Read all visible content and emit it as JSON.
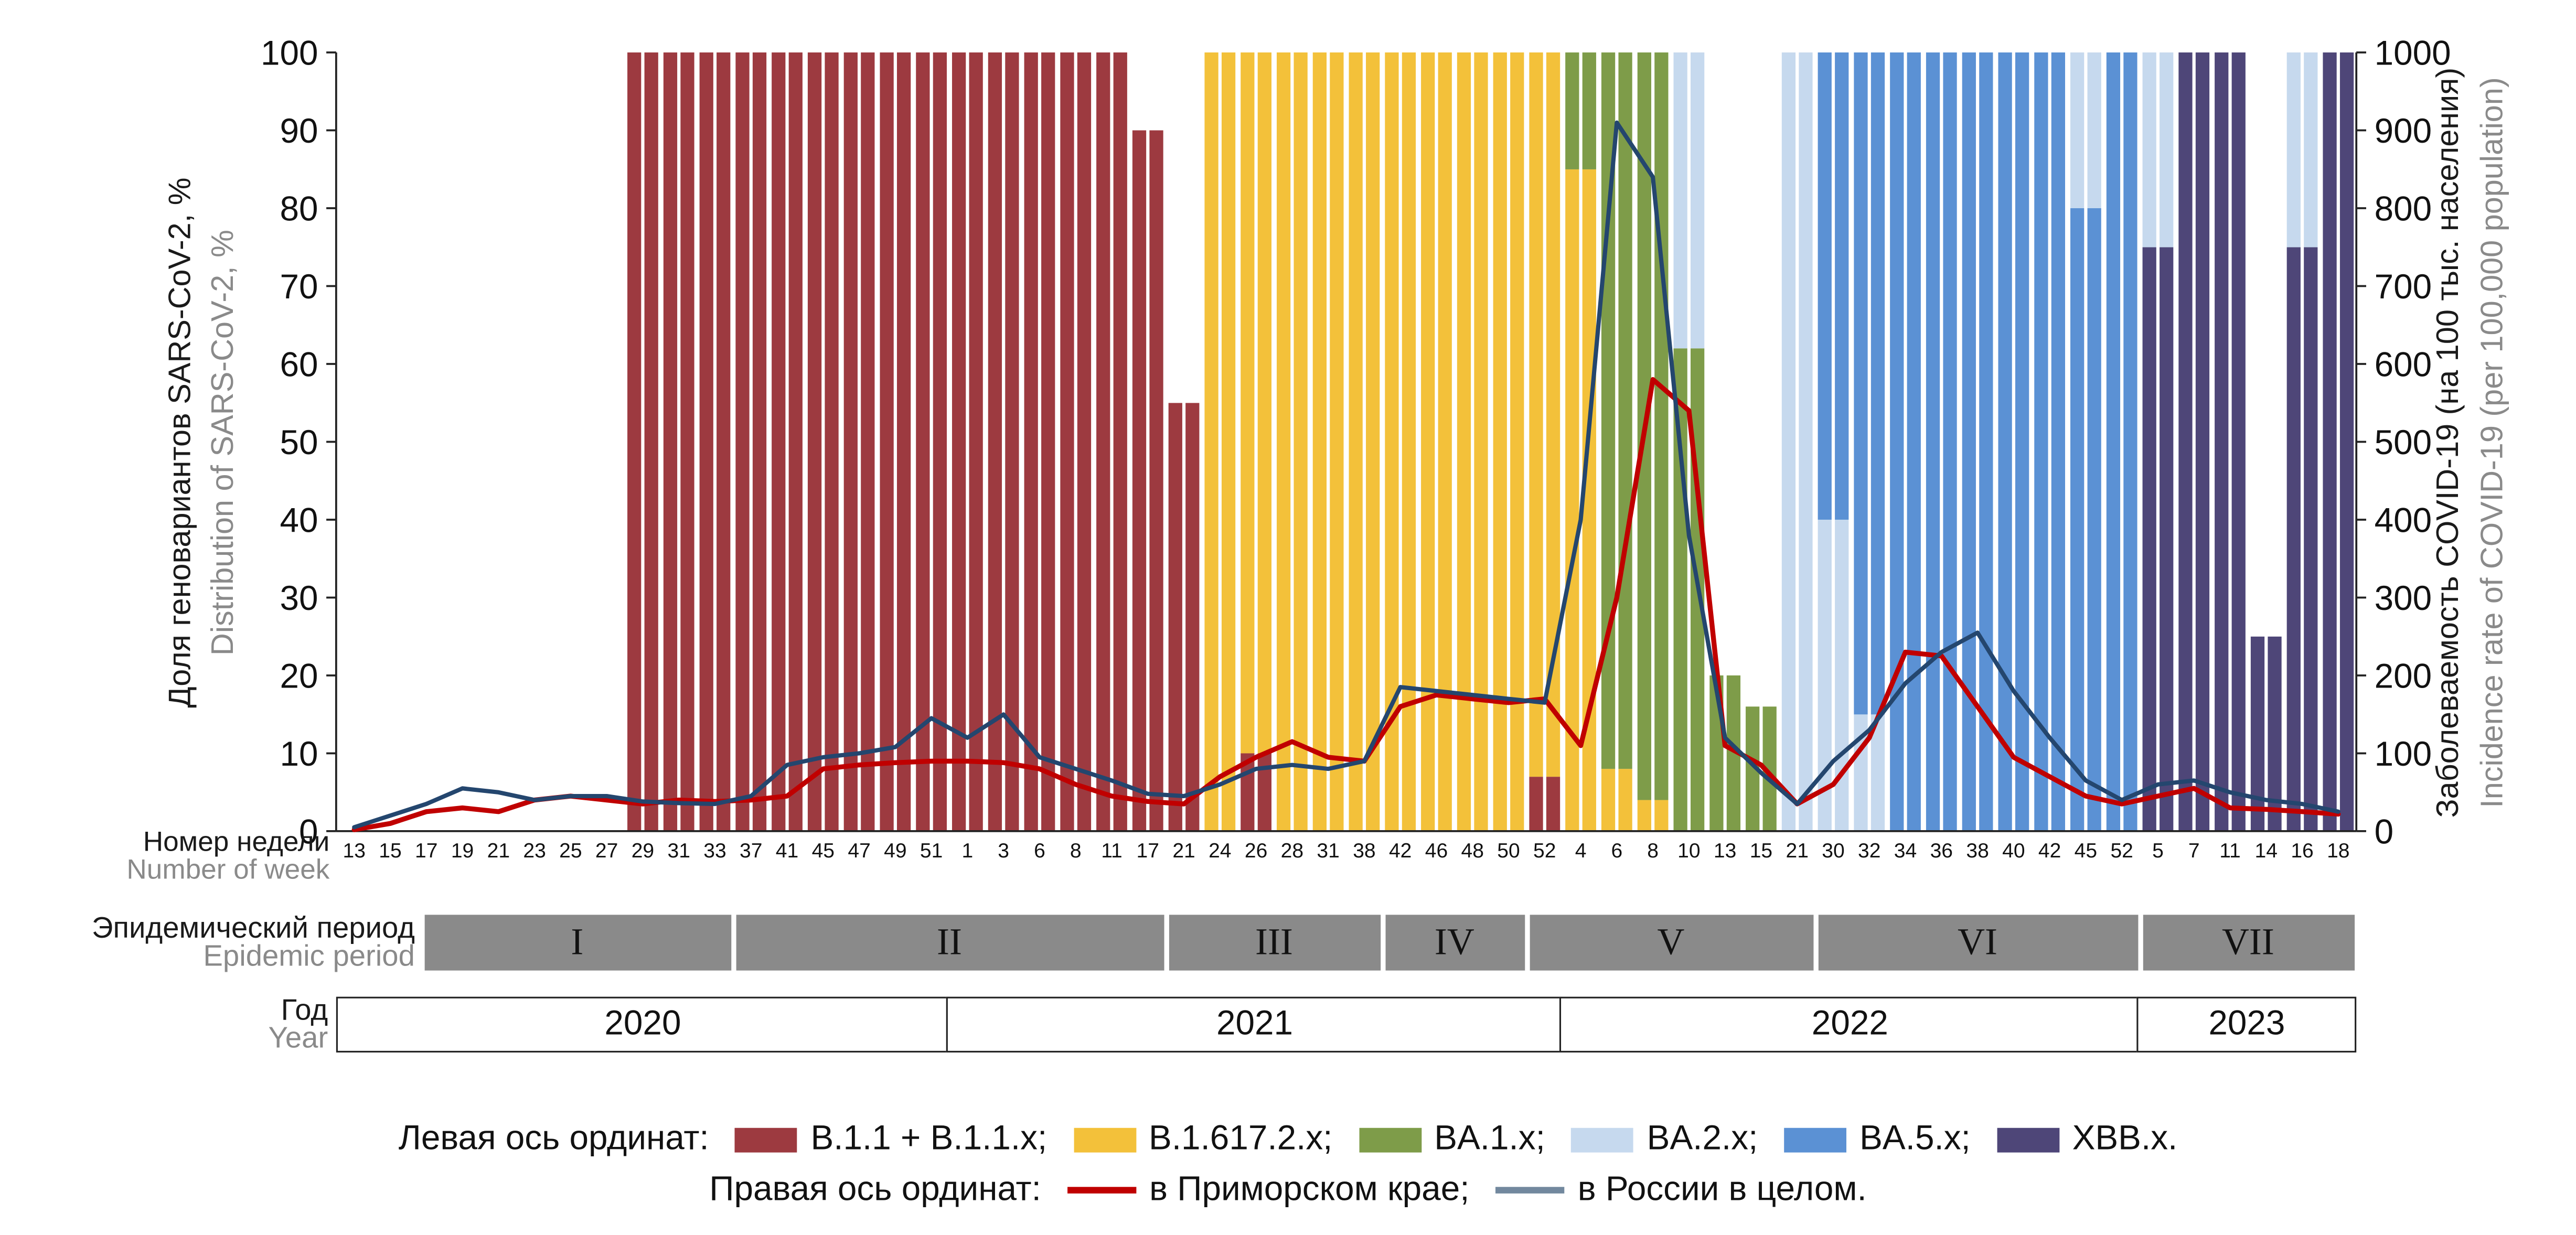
{
  "axes": {
    "left_title_ru": "Доля геновариантов SARS-CoV-2, %",
    "left_title_en": "Distribution of SARS-CoV-2, %",
    "right_title_ru": "Заболеваемость COVID-19 (на 100 тыс. населения)",
    "right_title_en": "Incidence rate of COVID-19 (per 100,000 population)"
  },
  "x_axis": {
    "label_ru": "Номер недели",
    "label_en": "Number of week",
    "weeks": [
      "13",
      "15",
      "17",
      "19",
      "21",
      "23",
      "25",
      "27",
      "29",
      "31",
      "33",
      "37",
      "41",
      "45",
      "47",
      "49",
      "51",
      "1",
      "3",
      "6",
      "8",
      "11",
      "17",
      "21",
      "24",
      "26",
      "28",
      "31",
      "38",
      "42",
      "46",
      "48",
      "50",
      "52",
      "4",
      "6",
      "8",
      "10",
      "13",
      "15",
      "21",
      "30",
      "32",
      "34",
      "36",
      "38",
      "40",
      "42",
      "45",
      "52",
      "5",
      "7",
      "11",
      "14",
      "16",
      "18"
    ]
  },
  "period_row": {
    "label_ru": "Эпидемический период",
    "label_en": "Epidemic period",
    "periods": [
      {
        "label": "I",
        "from": 0,
        "to": 10
      },
      {
        "label": "II",
        "from": 11,
        "to": 22
      },
      {
        "label": "III",
        "from": 23,
        "to": 28
      },
      {
        "label": "IV",
        "from": 29,
        "to": 32
      },
      {
        "label": "V",
        "from": 33,
        "to": 40
      },
      {
        "label": "VI",
        "from": 41,
        "to": 49
      },
      {
        "label": "VII",
        "from": 50,
        "to": 55
      }
    ]
  },
  "year_row": {
    "label_ru": "Год",
    "label_en": "Year",
    "years": [
      {
        "label": "2020",
        "from": 0,
        "to": 16
      },
      {
        "label": "2021",
        "from": 17,
        "to": 33
      },
      {
        "label": "2022",
        "from": 34,
        "to": 49
      },
      {
        "label": "2023",
        "from": 50,
        "to": 55
      }
    ]
  },
  "legend": {
    "left_axis_label": "Левая ось ординат:",
    "right_axis_label": "Правая ось ординат:"
  },
  "chart_data": {
    "type": "combo: stacked-bar (left axis, %) + line (right axis, incidence per 100,000)",
    "left_axis": {
      "min": 0,
      "max": 100,
      "ticks": [
        0,
        10,
        20,
        30,
        40,
        50,
        60,
        70,
        80,
        90,
        100
      ]
    },
    "right_axis": {
      "min": 0,
      "max": 1000,
      "ticks": [
        0,
        100,
        200,
        300,
        400,
        500,
        600,
        700,
        800,
        900,
        1000
      ]
    },
    "variants": [
      {
        "name": "B.1.1 + B.1.1.x",
        "legend_label": "B.1.1 + B.1.1.x;",
        "color": "#9d3a40"
      },
      {
        "name": "B.1.617.2.x",
        "legend_label": "B.1.617.2.x;",
        "color": "#f3c13a"
      },
      {
        "name": "BA.1.x",
        "legend_label": "BA.1.x;",
        "color": "#7e9c49"
      },
      {
        "name": "BA.2.x",
        "legend_label": "BA.2.x;",
        "color": "#c6d9ee"
      },
      {
        "name": "BA.5.x",
        "legend_label": "BA.5.x;",
        "color": "#5b91d4"
      },
      {
        "name": "XBB.x",
        "legend_label": "XBB.x.",
        "color": "#4e4678"
      }
    ],
    "bars_pct_note": "per week slot: list of [variantIndex, percent] stacked bottom-to-top",
    "bars_pct": [
      [],
      [],
      [],
      [],
      [],
      [],
      [],
      [],
      [
        [
          0,
          100
        ]
      ],
      [
        [
          0,
          100
        ]
      ],
      [
        [
          0,
          100
        ]
      ],
      [
        [
          0,
          100
        ]
      ],
      [
        [
          0,
          100
        ]
      ],
      [
        [
          0,
          100
        ]
      ],
      [
        [
          0,
          100
        ]
      ],
      [
        [
          0,
          100
        ]
      ],
      [
        [
          0,
          100
        ]
      ],
      [
        [
          0,
          100
        ]
      ],
      [
        [
          0,
          100
        ]
      ],
      [
        [
          0,
          100
        ]
      ],
      [
        [
          0,
          100
        ]
      ],
      [
        [
          0,
          100
        ]
      ],
      [
        [
          0,
          90
        ]
      ],
      [
        [
          0,
          55
        ]
      ],
      [
        [
          1,
          100
        ]
      ],
      [
        [
          0,
          10
        ],
        [
          1,
          90
        ]
      ],
      [
        [
          1,
          100
        ]
      ],
      [
        [
          1,
          100
        ]
      ],
      [
        [
          1,
          100
        ]
      ],
      [
        [
          1,
          100
        ]
      ],
      [
        [
          1,
          100
        ]
      ],
      [
        [
          1,
          100
        ]
      ],
      [
        [
          1,
          100
        ]
      ],
      [
        [
          0,
          7
        ],
        [
          1,
          93
        ]
      ],
      [
        [
          1,
          85
        ],
        [
          2,
          15
        ]
      ],
      [
        [
          1,
          8
        ],
        [
          2,
          92
        ]
      ],
      [
        [
          1,
          4
        ],
        [
          2,
          96
        ]
      ],
      [
        [
          2,
          62
        ],
        [
          3,
          38
        ]
      ],
      [
        [
          2,
          20
        ]
      ],
      [
        [
          2,
          16
        ]
      ],
      [
        [
          3,
          100
        ]
      ],
      [
        [
          3,
          40
        ],
        [
          4,
          60
        ]
      ],
      [
        [
          3,
          15
        ],
        [
          4,
          85
        ]
      ],
      [
        [
          4,
          100
        ]
      ],
      [
        [
          4,
          100
        ]
      ],
      [
        [
          4,
          100
        ]
      ],
      [
        [
          4,
          100
        ]
      ],
      [
        [
          4,
          100
        ]
      ],
      [
        [
          4,
          80
        ],
        [
          3,
          20
        ]
      ],
      [
        [
          4,
          100
        ]
      ],
      [
        [
          5,
          75
        ],
        [
          3,
          25
        ]
      ],
      [
        [
          5,
          100
        ]
      ],
      [
        [
          5,
          100
        ]
      ],
      [
        [
          5,
          25
        ]
      ],
      [
        [
          5,
          75
        ],
        [
          3,
          25
        ]
      ],
      [
        [
          5,
          100
        ]
      ]
    ],
    "series": [
      {
        "name": "в Приморском крае",
        "legend_label": "в Приморском крае;",
        "color": "#c00000",
        "legend_color": "#c00000",
        "width": 3,
        "values": [
          2,
          10,
          25,
          30,
          25,
          40,
          45,
          40,
          35,
          40,
          38,
          40,
          45,
          80,
          85,
          88,
          90,
          90,
          88,
          80,
          60,
          45,
          38,
          35,
          70,
          95,
          115,
          95,
          90,
          160,
          175,
          170,
          165,
          170,
          110,
          300,
          580,
          540,
          110,
          85,
          35,
          60,
          120,
          230,
          225,
          160,
          95,
          70,
          45,
          35,
          45,
          55,
          30,
          28,
          25,
          22
        ]
      },
      {
        "name": "в России в целом",
        "legend_label": "в России в целом.",
        "color": "#24466e",
        "legend_color": "#72889e",
        "width": 2.6,
        "values": [
          5,
          20,
          35,
          55,
          50,
          40,
          45,
          45,
          38,
          36,
          35,
          45,
          85,
          95,
          100,
          108,
          145,
          120,
          150,
          95,
          80,
          65,
          48,
          45,
          60,
          80,
          85,
          80,
          90,
          185,
          180,
          175,
          170,
          165,
          400,
          910,
          840,
          380,
          120,
          75,
          35,
          90,
          130,
          190,
          230,
          255,
          180,
          120,
          65,
          40,
          60,
          65,
          50,
          40,
          35,
          25
        ]
      }
    ]
  }
}
